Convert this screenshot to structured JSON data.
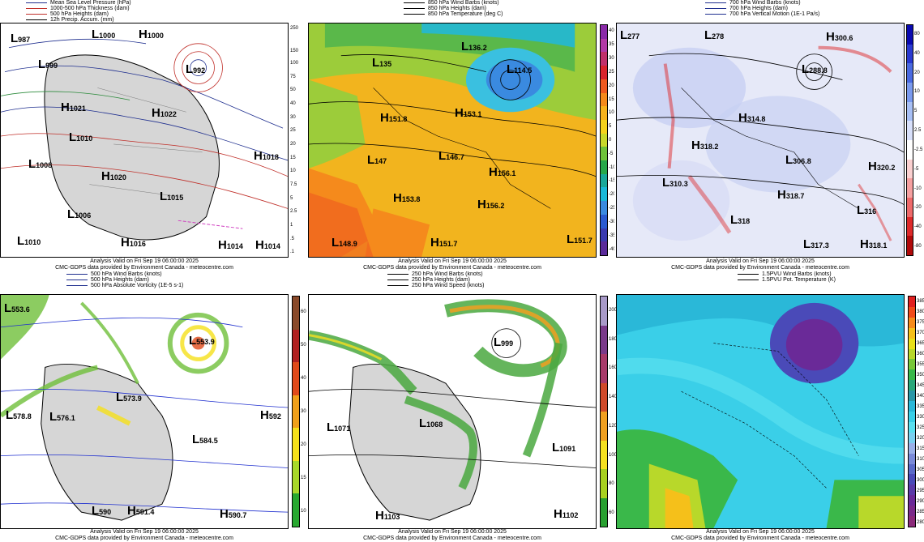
{
  "panels": [
    {
      "id": "mslp",
      "legend": [
        {
          "text": "Mean Sea Level Pressure (hPa)",
          "color": "#1f2f8f"
        },
        {
          "text": "1000-500 hPa Thickness (dam)",
          "color": "#c0302a"
        },
        {
          "text": "500 hPa Heights (dam)",
          "color": "#c0302a"
        },
        {
          "text": "12h Precip. Accum. (mm)",
          "color": "#000000"
        }
      ],
      "caption": [
        "Analysis Valid on Fri Sep 19 06:00:00 2025",
        "CMC-GDPS data provided by Environment Canada - meteocentre.com"
      ],
      "scale": [],
      "systems": [
        {
          "t": "L",
          "v": "987"
        },
        {
          "t": "L",
          "v": "999"
        },
        {
          "t": "L",
          "v": "1000"
        },
        {
          "t": "L",
          "v": "992"
        },
        {
          "t": "H",
          "v": "1000"
        },
        {
          "t": "H",
          "v": "1021"
        },
        {
          "t": "H",
          "v": "1022"
        },
        {
          "t": "L",
          "v": "1010"
        },
        {
          "t": "L",
          "v": "1008"
        },
        {
          "t": "H",
          "v": "1020"
        },
        {
          "t": "H",
          "v": "1018"
        },
        {
          "t": "L",
          "v": "1015"
        },
        {
          "t": "L",
          "v": "1006"
        },
        {
          "t": "L",
          "v": "1010"
        },
        {
          "t": "H",
          "v": "1016"
        },
        {
          "t": "H",
          "v": "1014"
        },
        {
          "t": "H",
          "v": "1014"
        }
      ]
    },
    {
      "id": "850",
      "legend": [
        {
          "text": "850 hPa Wind Barbs (knots)",
          "color": "#000000"
        },
        {
          "text": "850 hPa Heights (dam)",
          "color": "#000000"
        },
        {
          "text": "850 hPa Temperature (deg C)",
          "color": "#000000"
        }
      ],
      "caption": [
        "Analysis Valid on Fri Sep 19 06:00:00 2025",
        "CMC-GDPS data provided by Environment Canada - meteocentre.com"
      ],
      "scale": [
        "40",
        "35",
        "30",
        "25",
        "20",
        "15",
        "10",
        "5",
        "0",
        "-5",
        "-10",
        "-15",
        "-20",
        "-25",
        "-30",
        "-35",
        "-40"
      ],
      "scale_colors": [
        "#8a2aa8",
        "#b23aa6",
        "#c0306a",
        "#d9242c",
        "#ef5a20",
        "#f58a1c",
        "#f7b21c",
        "#f5d21c",
        "#c8d82a",
        "#6fc23a",
        "#28a84a",
        "#1aa89a",
        "#1ab8d8",
        "#3a8ae0",
        "#2a5ad0",
        "#3a3ab0",
        "#5a2a9a"
      ],
      "systems": [
        {
          "t": "L",
          "v": "135"
        },
        {
          "t": "L",
          "v": "136.2"
        },
        {
          "t": "L",
          "v": "114.5"
        },
        {
          "t": "H",
          "v": "151.8"
        },
        {
          "t": "H",
          "v": "153.1"
        },
        {
          "t": "L",
          "v": "146.7"
        },
        {
          "t": "L",
          "v": "147"
        },
        {
          "t": "H",
          "v": "156.1"
        },
        {
          "t": "H",
          "v": "153.8"
        },
        {
          "t": "H",
          "v": "156.2"
        },
        {
          "t": "L",
          "v": "148.9"
        },
        {
          "t": "H",
          "v": "151.7"
        },
        {
          "t": "L",
          "v": "151.7"
        }
      ]
    },
    {
      "id": "700",
      "legend": [
        {
          "text": "700 hPa Wind Barbs (knots)",
          "color": "#1f2f8f"
        },
        {
          "text": "700 hPa Heights (dam)",
          "color": "#1f2f8f"
        },
        {
          "text": "700 hPa Vertical Motion (1E-1 Pa/s)",
          "color": "#1f2f8f"
        }
      ],
      "caption": [
        "Analysis Valid on Fri Sep 19 06:00:00 2025",
        "CMC-GDPS data provided by Environment Canada - meteocentre.com"
      ],
      "scale": [
        "80",
        "40",
        "20",
        "10",
        "5",
        "2.5",
        "-2.5",
        "-5",
        "-10",
        "-20",
        "-40",
        "-80"
      ],
      "scale_colors": [
        "#0a0ab0",
        "#2a3ad0",
        "#4a6ae0",
        "#7a9aee",
        "#a8c0f5",
        "#d8e0fa",
        "#ffffff",
        "#fad0d0",
        "#f5a0a0",
        "#ee6a6a",
        "#dd2a2a",
        "#b00a0a"
      ],
      "systems": [
        {
          "t": "L",
          "v": "277"
        },
        {
          "t": "L",
          "v": "278"
        },
        {
          "t": "H",
          "v": "300.6"
        },
        {
          "t": "L",
          "v": "288.8"
        },
        {
          "t": "H",
          "v": "314.8"
        },
        {
          "t": "H",
          "v": "318.2"
        },
        {
          "t": "L",
          "v": "306.8"
        },
        {
          "t": "H",
          "v": "320.2"
        },
        {
          "t": "L",
          "v": "310.3"
        },
        {
          "t": "H",
          "v": "318.7"
        },
        {
          "t": "L",
          "v": "316"
        },
        {
          "t": "L",
          "v": "318"
        },
        {
          "t": "L",
          "v": "317.3"
        },
        {
          "t": "H",
          "v": "318.1"
        }
      ]
    },
    {
      "id": "500",
      "legend": [
        {
          "text": "500 hPa Wind Barbs (knots)",
          "color": "#1f2f8f"
        },
        {
          "text": "500 hPa Heights (dam)",
          "color": "#1f2f8f"
        },
        {
          "text": "500 hPa Absolute Vorticity (1E-5 s-1)",
          "color": "#1f2f8f"
        }
      ],
      "caption": [
        "Analysis Valid on Fri Sep 19 06:00:00 2025",
        "CMC-GDPS data provided by Environment Canada - meteocentre.com"
      ],
      "scale": [
        "60",
        "50",
        "40",
        "30",
        "20",
        "15",
        "10"
      ],
      "scale_colors": [
        "#8a4a2a",
        "#b02020",
        "#e04a1a",
        "#f0a01a",
        "#f5e01a",
        "#a8d82a",
        "#28a830"
      ],
      "systems": [
        {
          "t": "L",
          "v": "553.6"
        },
        {
          "t": "L",
          "v": "553.9"
        },
        {
          "t": "L",
          "v": "578.8"
        },
        {
          "t": "L",
          "v": "576.1"
        },
        {
          "t": "L",
          "v": "573.9"
        },
        {
          "t": "H",
          "v": "592"
        },
        {
          "t": "L",
          "v": "584.5"
        },
        {
          "t": "L",
          "v": "590"
        },
        {
          "t": "H",
          "v": "591.4"
        },
        {
          "t": "H",
          "v": "590.7"
        }
      ]
    },
    {
      "id": "250",
      "legend": [
        {
          "text": "250 hPa Wind Barbs (knots)",
          "color": "#000000"
        },
        {
          "text": "250 hPa Heights (dam)",
          "color": "#000000"
        },
        {
          "text": "250 hPa Wind Speed (knots)",
          "color": "#000000"
        }
      ],
      "caption": [
        "Analysis Valid on Fri Sep 19 06:00:00 2025",
        "CMC-GDPS data provided by Environment Canada - meteocentre.com"
      ],
      "scale": [
        "200",
        "180",
        "160",
        "140",
        "120",
        "100",
        "80",
        "60"
      ],
      "scale_colors": [
        "#a89ac8",
        "#7a3a8a",
        "#a83a6a",
        "#d04a2a",
        "#f0a020",
        "#f5e020",
        "#a8d020",
        "#28a030"
      ],
      "systems": [
        {
          "t": "L",
          "v": "999"
        },
        {
          "t": "L",
          "v": "1071"
        },
        {
          "t": "L",
          "v": "1068"
        },
        {
          "t": "L",
          "v": "1091"
        },
        {
          "t": "H",
          "v": "1103"
        },
        {
          "t": "H",
          "v": "1102"
        }
      ]
    },
    {
      "id": "pvu",
      "legend": [
        {
          "text": "1.5PVU Wind Barbs (knots)",
          "color": "#000000"
        },
        {
          "text": "1.5PVU Pot. Temperature (K)",
          "color": "#000000"
        }
      ],
      "caption": [
        "Analysis Valid on Fri Sep 19 06:00:00 2025",
        "CMC-GDPS data provided by Environment Canada - meteocentre.com"
      ],
      "scale": [
        "385",
        "380",
        "375",
        "370",
        "365",
        "360",
        "355",
        "350",
        "345",
        "340",
        "335",
        "330",
        "325",
        "320",
        "315",
        "310",
        "305",
        "300",
        "295",
        "290",
        "285",
        "280"
      ],
      "scale_colors": [
        "#e02020",
        "#f04a1a",
        "#f58a1a",
        "#f5c01a",
        "#e8e01a",
        "#b8d82a",
        "#78c83a",
        "#3ab84a",
        "#2aa87a",
        "#2a98a8",
        "#2ab8d8",
        "#3ad0e8",
        "#5ae0f0",
        "#7ad0f0",
        "#9ab0e8",
        "#7a8ad8",
        "#5a6ac8",
        "#4a4ab8",
        "#5a3aa8",
        "#6a2a98",
        "#7a2a8a",
        "#8a2a7a"
      ],
      "systems": []
    }
  ]
}
